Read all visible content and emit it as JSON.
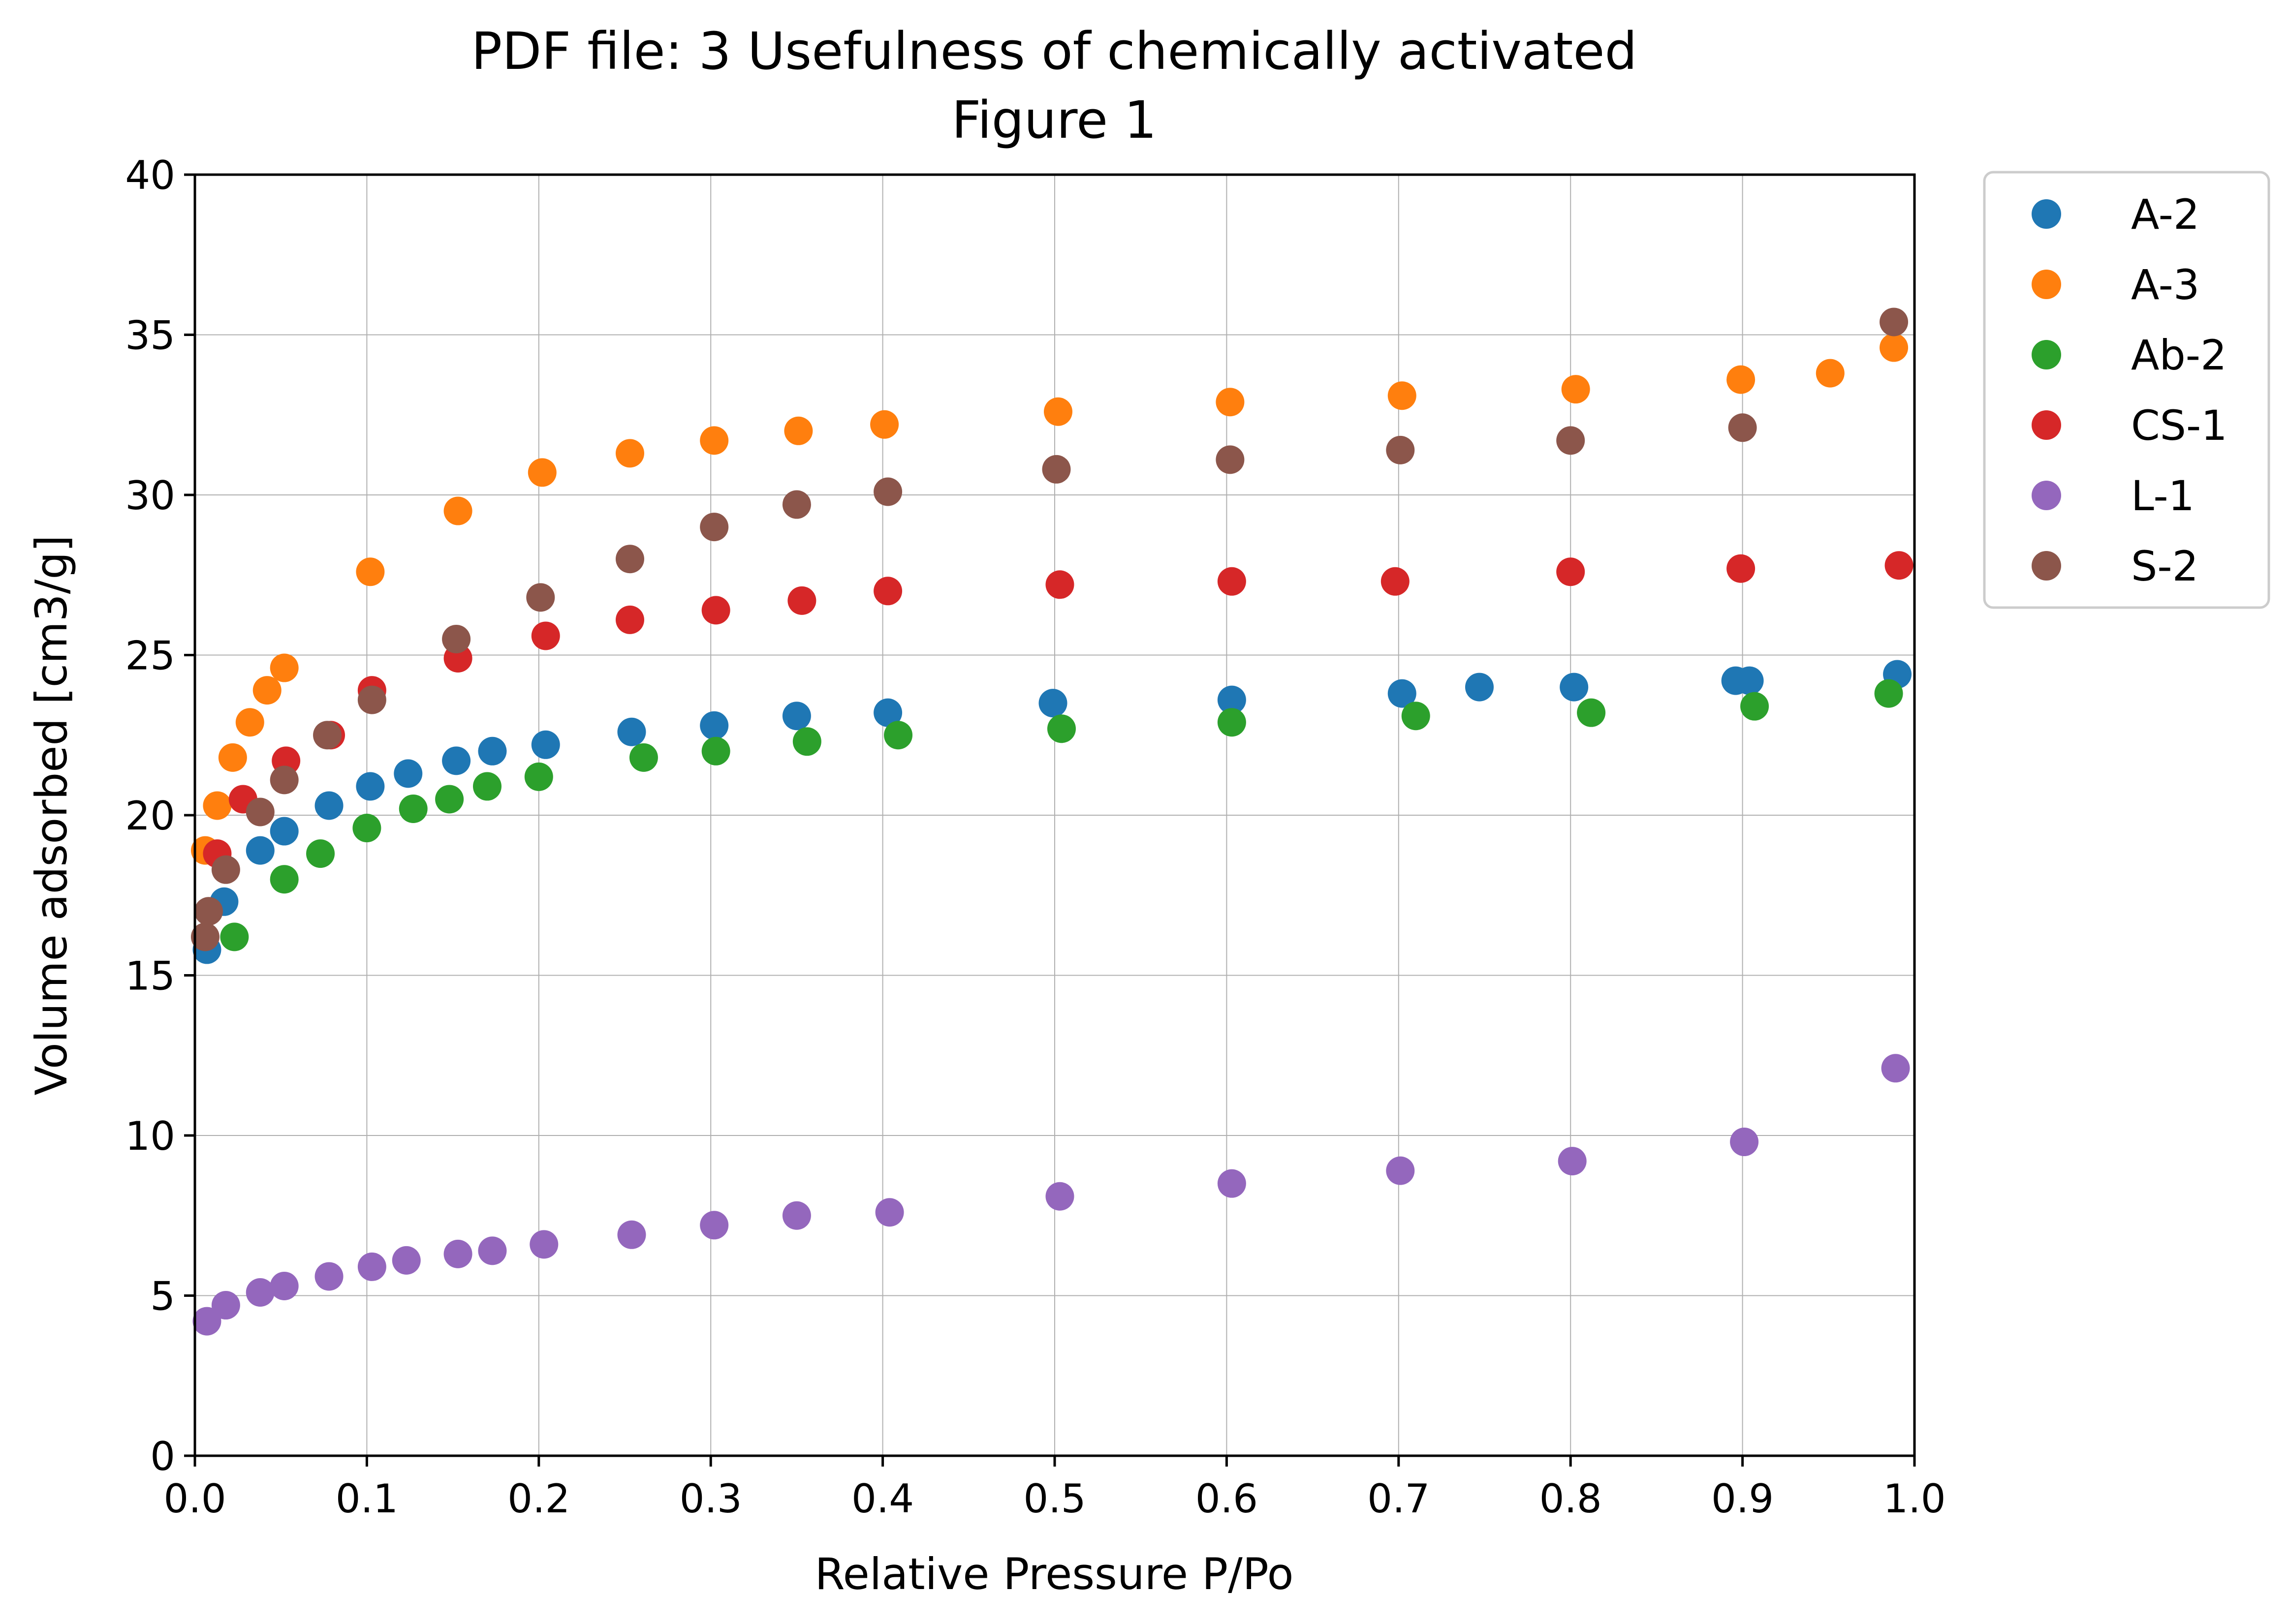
{
  "chart_data": {
    "type": "scatter",
    "title_line1": "PDF file: 3 Usefulness of chemically activated",
    "title_line2": "Figure 1",
    "xlabel": "Relative Pressure P/Po",
    "ylabel": "Volume adsorbed [cm3/g]",
    "xlim": [
      0,
      1
    ],
    "ylim": [
      0,
      40
    ],
    "xticks": [
      "0.0",
      "0.1",
      "0.2",
      "0.3",
      "0.4",
      "0.5",
      "0.6",
      "0.7",
      "0.8",
      "0.9",
      "1.0"
    ],
    "yticks": [
      "0",
      "5",
      "10",
      "15",
      "20",
      "25",
      "30",
      "35",
      "40"
    ],
    "grid": true,
    "legend_position": "outside top-right",
    "series": [
      {
        "name": "A-2",
        "color": "#1f77b4",
        "x": [
          0.007,
          0.017,
          0.038,
          0.052,
          0.078,
          0.102,
          0.124,
          0.152,
          0.173,
          0.204,
          0.254,
          0.302,
          0.35,
          0.403,
          0.499,
          0.603,
          0.702,
          0.747,
          0.802,
          0.896,
          0.904,
          0.99
        ],
        "y": [
          15.8,
          17.3,
          18.9,
          19.5,
          20.3,
          20.9,
          21.3,
          21.7,
          22.0,
          22.2,
          22.6,
          22.8,
          23.1,
          23.2,
          23.5,
          23.6,
          23.8,
          24.0,
          24.0,
          24.2,
          24.2,
          24.4
        ]
      },
      {
        "name": "A-3",
        "color": "#ff7f0e",
        "x": [
          0.006,
          0.013,
          0.022,
          0.032,
          0.042,
          0.052,
          0.102,
          0.153,
          0.202,
          0.253,
          0.302,
          0.351,
          0.401,
          0.502,
          0.602,
          0.702,
          0.803,
          0.899,
          0.951,
          0.988
        ],
        "y": [
          18.9,
          20.3,
          21.8,
          22.9,
          23.9,
          24.6,
          27.6,
          29.5,
          30.7,
          31.3,
          31.7,
          32.0,
          32.2,
          32.6,
          32.9,
          33.1,
          33.3,
          33.6,
          33.8,
          34.6
        ]
      },
      {
        "name": "Ab-2",
        "color": "#2ca02c",
        "x": [
          0.023,
          0.052,
          0.073,
          0.1,
          0.127,
          0.148,
          0.17,
          0.2,
          0.261,
          0.303,
          0.356,
          0.409,
          0.504,
          0.603,
          0.71,
          0.812,
          0.907,
          0.985
        ],
        "y": [
          16.2,
          18.0,
          18.8,
          19.6,
          20.2,
          20.5,
          20.9,
          21.2,
          21.8,
          22.0,
          22.3,
          22.5,
          22.7,
          22.9,
          23.1,
          23.2,
          23.4,
          23.8
        ]
      },
      {
        "name": "CS-1",
        "color": "#d62728",
        "x": [
          0.013,
          0.028,
          0.053,
          0.079,
          0.103,
          0.153,
          0.204,
          0.253,
          0.303,
          0.353,
          0.403,
          0.503,
          0.603,
          0.698,
          0.8,
          0.899,
          0.991
        ],
        "y": [
          18.8,
          20.5,
          21.7,
          22.5,
          23.9,
          24.9,
          25.6,
          26.1,
          26.4,
          26.7,
          27.0,
          27.2,
          27.3,
          27.3,
          27.6,
          27.7,
          27.8
        ]
      },
      {
        "name": "L-1",
        "color": "#9467bd",
        "x": [
          0.007,
          0.018,
          0.038,
          0.052,
          0.078,
          0.103,
          0.123,
          0.153,
          0.173,
          0.203,
          0.254,
          0.302,
          0.35,
          0.404,
          0.503,
          0.603,
          0.701,
          0.801,
          0.901,
          0.989
        ],
        "y": [
          4.2,
          4.7,
          5.1,
          5.3,
          5.6,
          5.9,
          6.1,
          6.3,
          6.4,
          6.6,
          6.9,
          7.2,
          7.5,
          7.6,
          8.1,
          8.5,
          8.9,
          9.2,
          9.8,
          12.1
        ]
      },
      {
        "name": "S-2",
        "color": "#8c564b",
        "x": [
          0.006,
          0.008,
          0.018,
          0.038,
          0.052,
          0.077,
          0.103,
          0.152,
          0.201,
          0.253,
          0.302,
          0.35,
          0.403,
          0.501,
          0.602,
          0.701,
          0.8,
          0.9,
          0.988
        ],
        "y": [
          16.2,
          17.0,
          18.3,
          20.1,
          21.1,
          22.5,
          23.6,
          25.5,
          26.8,
          28.0,
          29.0,
          29.7,
          30.1,
          30.8,
          31.1,
          31.4,
          31.7,
          32.1,
          35.4
        ]
      }
    ]
  }
}
